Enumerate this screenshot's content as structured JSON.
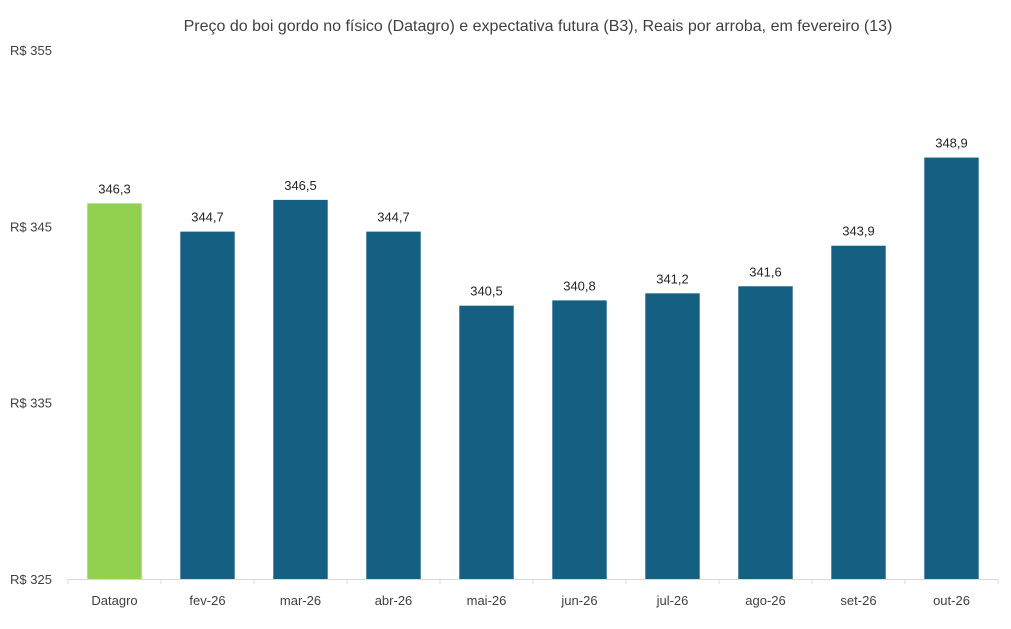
{
  "chart_data": {
    "type": "bar",
    "title": "Preço do boi gordo no físico (Datagro)  e expectativa futura (B3), Reais por arroba, em fevereiro (13)",
    "xlabel": "",
    "ylabel": "",
    "categories": [
      "Datagro",
      "fev-26",
      "mar-26",
      "abr-26",
      "mai-26",
      "jun-26",
      "jul-26",
      "ago-26",
      "set-26",
      "out-26"
    ],
    "values": [
      346.3,
      344.7,
      346.5,
      344.7,
      340.5,
      340.8,
      341.2,
      341.6,
      343.9,
      348.9
    ],
    "value_labels": [
      "346,3",
      "344,7",
      "346,5",
      "344,7",
      "340,5",
      "340,8",
      "341,2",
      "341,6",
      "343,9",
      "348,9"
    ],
    "bar_colors": [
      "#92d050",
      "#155f82",
      "#155f82",
      "#155f82",
      "#155f82",
      "#155f82",
      "#155f82",
      "#155f82",
      "#155f82",
      "#155f82"
    ],
    "ylim": [
      325,
      355
    ],
    "y_ticks": [
      325,
      335,
      345,
      355
    ],
    "y_tick_labels": [
      "R$ 325",
      "R$ 335",
      "R$ 345",
      "R$ 355"
    ],
    "grid": false,
    "legend": "none"
  }
}
